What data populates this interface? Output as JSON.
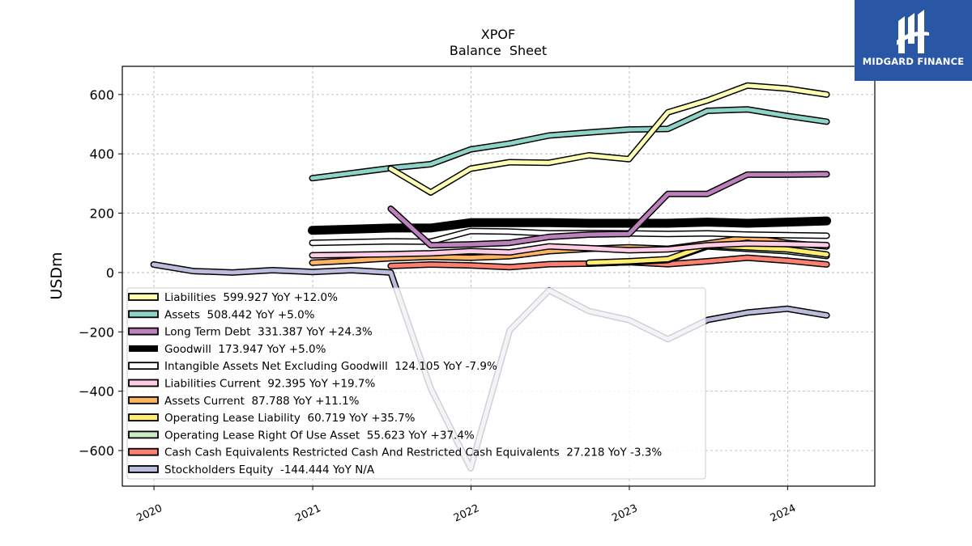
{
  "brand": {
    "name": "MIDGARD FINANCE",
    "bg_color": "#2a56a6",
    "icon": "midgard-logo-icon"
  },
  "chart_data": {
    "type": "line",
    "title": "XPOF",
    "subtitle": "Balance  Sheet",
    "xlabel": "",
    "ylabel": "USDm",
    "xlim": [
      "2019-10-20",
      "2024-07-20"
    ],
    "ylim": [
      -720,
      695
    ],
    "x_ticks": [
      "2020",
      "2021",
      "2022",
      "2023",
      "2024"
    ],
    "y_ticks": [
      600,
      400,
      200,
      0,
      -200,
      -400,
      -600
    ],
    "y_tick_labels": [
      "600",
      "400",
      "200",
      "0",
      "−200",
      "−400",
      "−600"
    ],
    "grid": true,
    "legend_position": "lower-left",
    "series": [
      {
        "name": "Stockholders Equity",
        "legend": "Stockholders Equity  -144.444 YoY N/A",
        "color": "#bcbddc",
        "x": [
          "2019-12-31",
          "2020-03-31",
          "2020-06-30",
          "2020-09-30",
          "2020-12-31",
          "2021-03-31",
          "2021-06-30",
          "2021-09-30",
          "2021-12-31",
          "2022-03-31",
          "2022-06-30",
          "2022-09-30",
          "2022-12-31",
          "2023-03-31",
          "2023-06-30",
          "2023-09-30",
          "2023-12-31",
          "2024-03-31"
        ],
        "y": [
          27,
          5,
          0,
          8,
          2,
          8,
          0,
          -390,
          -660,
          -195,
          -60,
          -130,
          -160,
          -225,
          -160,
          -135,
          -122,
          -144.444
        ]
      },
      {
        "name": "Cash Cash Equivalents Restricted Cash And Restricted Cash Equivalents",
        "legend": "Cash Cash Equivalents Restricted Cash And Restricted Cash Equivalents  27.218 YoY -3.3%",
        "color": "#fb8072",
        "x": [
          "2021-06-30",
          "2021-09-30",
          "2021-12-31",
          "2022-03-31",
          "2022-06-30",
          "2022-09-30",
          "2022-12-31",
          "2023-03-31",
          "2023-06-30",
          "2023-09-30",
          "2023-12-31",
          "2024-03-31"
        ],
        "y": [
          22,
          27,
          24,
          18,
          28,
          30,
          35,
          28,
          38,
          50,
          40,
          27.218
        ]
      },
      {
        "name": "Operating Lease Right Of Use Asset",
        "legend": "Operating Lease Right Of Use Asset  55.623 YoY +37.4%",
        "color": "#ccebc5",
        "x": [
          "2022-09-30",
          "2022-12-31",
          "2023-03-31",
          "2023-06-30",
          "2023-09-30",
          "2023-12-31",
          "2024-03-31"
        ],
        "y": [
          30,
          35,
          42,
          88,
          80,
          72,
          55.623
        ]
      },
      {
        "name": "Operating Lease Liability",
        "legend": "Operating Lease Liability  60.719 YoY +35.7%",
        "color": "#ffed6f",
        "x": [
          "2022-09-30",
          "2022-12-31",
          "2023-03-31",
          "2023-06-30",
          "2023-09-30",
          "2023-12-31",
          "2024-03-31"
        ],
        "y": [
          33,
          38,
          45,
          92,
          85,
          78,
          60.719
        ]
      },
      {
        "name": "Assets Current",
        "legend": "Assets Current  87.788 YoY +11.1%",
        "color": "#fdb462",
        "x": [
          "2020-12-31",
          "2021-03-31",
          "2021-06-30",
          "2021-09-30",
          "2021-12-31",
          "2022-03-31",
          "2022-06-30",
          "2022-09-30",
          "2022-12-31",
          "2023-03-31",
          "2023-06-30",
          "2023-09-30",
          "2023-12-31",
          "2024-03-31"
        ],
        "y": [
          33,
          40,
          48,
          53,
          50,
          55,
          72,
          80,
          85,
          80,
          98,
          118,
          100,
          87.788
        ]
      },
      {
        "name": "Liabilities Current",
        "legend": "Liabilities Current  92.395 YoY +19.7%",
        "color": "#fccde5",
        "x": [
          "2020-12-31",
          "2021-06-30",
          "2021-09-30",
          "2021-12-31",
          "2022-03-31",
          "2022-06-30",
          "2022-09-30",
          "2022-12-31",
          "2023-03-31",
          "2023-06-30",
          "2023-09-30",
          "2023-12-31",
          "2024-03-31"
        ],
        "y": [
          58,
          62,
          65,
          72,
          68,
          88,
          82,
          75,
          78,
          92,
          98,
          96,
          92.395
        ]
      },
      {
        "name": "Intangible Assets Net Excluding Goodwill",
        "legend": "Intangible Assets Net Excluding Goodwill  124.105 YoY -7.9%",
        "color": "#ffffff",
        "x": [
          "2020-12-31",
          "2021-06-30",
          "2021-09-30",
          "2021-12-31",
          "2022-03-31",
          "2022-06-30",
          "2022-09-30",
          "2022-12-31",
          "2023-03-31",
          "2023-06-30",
          "2023-09-30",
          "2023-12-31",
          "2024-03-31"
        ],
        "y": [
          100,
          105,
          104,
          140,
          138,
          132,
          133,
          132,
          130,
          132,
          128,
          126,
          124.105
        ]
      },
      {
        "name": "Goodwill",
        "legend": "Goodwill  173.947 YoY +5.0%",
        "color": "#000000",
        "x": [
          "2020-12-31",
          "2021-03-31",
          "2021-06-30",
          "2021-09-30",
          "2021-12-31",
          "2022-03-31",
          "2022-06-30",
          "2022-09-30",
          "2022-12-31",
          "2023-03-31",
          "2023-06-30",
          "2023-09-30",
          "2023-12-31",
          "2024-03-31"
        ],
        "y": [
          142,
          146,
          150,
          150,
          168,
          168,
          168,
          166,
          166,
          166,
          170,
          166,
          170,
          173.947
        ]
      },
      {
        "name": "Long Term Debt",
        "legend": "Long Term Debt  331.387 YoY +24.3%",
        "color": "#bc80bd",
        "x": [
          "2021-06-30",
          "2021-09-30",
          "2021-12-31",
          "2022-03-31",
          "2022-06-30",
          "2022-09-30",
          "2022-12-31",
          "2023-03-31",
          "2023-06-30",
          "2023-09-30",
          "2023-12-31",
          "2024-03-31"
        ],
        "y": [
          215,
          92,
          95,
          100,
          120,
          128,
          130,
          265,
          265,
          330,
          330,
          331.387
        ]
      },
      {
        "name": "Assets",
        "legend": "Assets  508.442 YoY +5.0%",
        "color": "#8dd3c7",
        "x": [
          "2020-12-31",
          "2021-06-30",
          "2021-09-30",
          "2021-12-31",
          "2022-03-31",
          "2022-06-30",
          "2022-09-30",
          "2022-12-31",
          "2023-03-31",
          "2023-06-30",
          "2023-09-30",
          "2023-12-31",
          "2024-03-31"
        ],
        "y": [
          318,
          352,
          365,
          415,
          435,
          462,
          472,
          482,
          484,
          545,
          550,
          528,
          508.442
        ]
      },
      {
        "name": "Liabilities",
        "legend": "Liabilities  599.927 YoY +12.0%",
        "color": "#ffffb3",
        "x": [
          "2021-06-30",
          "2021-09-30",
          "2021-12-31",
          "2022-03-31",
          "2022-06-30",
          "2022-09-30",
          "2022-12-31",
          "2023-03-31",
          "2023-06-30",
          "2023-09-30",
          "2023-12-31",
          "2024-03-31"
        ],
        "y": [
          350,
          270,
          350,
          372,
          370,
          395,
          382,
          540,
          580,
          630,
          620,
          599.927
        ]
      }
    ]
  }
}
